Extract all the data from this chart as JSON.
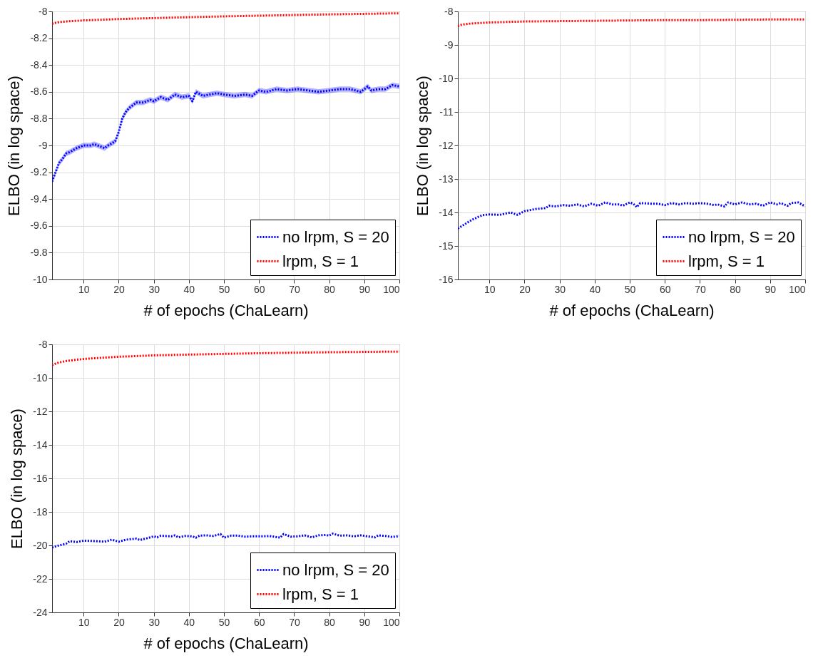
{
  "chart_data": [
    {
      "type": "line",
      "xlabel": "# of epochs (ChaLearn)",
      "ylabel": "ELBO (in log space)",
      "xlim": [
        1,
        100
      ],
      "xticks": [
        10,
        20,
        30,
        40,
        50,
        60,
        70,
        80,
        90,
        100
      ],
      "ylim": [
        -10,
        -8
      ],
      "yticks": [
        -10,
        -9.8,
        -9.6,
        -9.4,
        -9.2,
        -9,
        -8.8,
        -8.6,
        -8.4,
        -8.2,
        -8
      ],
      "grid": true,
      "legend": "bottom right",
      "line_style": "dotted",
      "series": [
        {
          "name": "no lrpm, S = 20",
          "color": "#0000ff",
          "x": [
            1,
            2,
            3,
            4,
            5,
            6,
            8,
            10,
            12,
            13,
            14,
            16,
            17,
            19,
            20,
            21,
            22,
            23,
            24,
            25,
            27,
            29,
            30,
            32,
            34,
            36,
            38,
            40,
            41,
            42,
            44,
            46,
            48,
            50,
            53,
            56,
            58,
            60,
            62,
            65,
            68,
            71,
            74,
            77,
            80,
            83,
            86,
            89,
            91,
            92,
            94,
            96,
            98,
            100
          ],
          "values": [
            -9.27,
            -9.2,
            -9.13,
            -9.1,
            -9.06,
            -9.05,
            -9.02,
            -9.0,
            -9.0,
            -8.99,
            -9.0,
            -9.02,
            -9.0,
            -8.97,
            -8.9,
            -8.8,
            -8.75,
            -8.72,
            -8.7,
            -8.68,
            -8.68,
            -8.66,
            -8.67,
            -8.64,
            -8.66,
            -8.62,
            -8.64,
            -8.63,
            -8.67,
            -8.6,
            -8.63,
            -8.62,
            -8.61,
            -8.62,
            -8.63,
            -8.62,
            -8.63,
            -8.59,
            -8.6,
            -8.58,
            -8.59,
            -8.58,
            -8.59,
            -8.6,
            -8.59,
            -8.58,
            -8.58,
            -8.6,
            -8.56,
            -8.59,
            -8.58,
            -8.58,
            -8.55,
            -8.56
          ],
          "lower": [
            -9.29,
            -9.22,
            -9.15,
            -9.12,
            -9.08,
            -9.07,
            -9.04,
            -9.02,
            -9.02,
            -9.01,
            -9.02,
            -9.04,
            -9.02,
            -8.99,
            -8.92,
            -8.82,
            -8.77,
            -8.74,
            -8.72,
            -8.7,
            -8.7,
            -8.68,
            -8.69,
            -8.66,
            -8.68,
            -8.64,
            -8.66,
            -8.65,
            -8.69,
            -8.62,
            -8.65,
            -8.64,
            -8.63,
            -8.64,
            -8.65,
            -8.64,
            -8.65,
            -8.61,
            -8.62,
            -8.6,
            -8.61,
            -8.6,
            -8.61,
            -8.62,
            -8.61,
            -8.6,
            -8.6,
            -8.62,
            -8.58,
            -8.61,
            -8.6,
            -8.6,
            -8.57,
            -8.58
          ],
          "upper": [
            -9.25,
            -9.18,
            -9.11,
            -9.08,
            -9.04,
            -9.03,
            -9.0,
            -8.98,
            -8.98,
            -8.97,
            -8.98,
            -9.0,
            -8.98,
            -8.95,
            -8.88,
            -8.78,
            -8.73,
            -8.7,
            -8.68,
            -8.66,
            -8.66,
            -8.64,
            -8.65,
            -8.62,
            -8.64,
            -8.6,
            -8.62,
            -8.61,
            -8.65,
            -8.58,
            -8.61,
            -8.6,
            -8.59,
            -8.6,
            -8.61,
            -8.6,
            -8.61,
            -8.57,
            -8.58,
            -8.56,
            -8.57,
            -8.56,
            -8.57,
            -8.58,
            -8.57,
            -8.56,
            -8.56,
            -8.58,
            -8.54,
            -8.57,
            -8.56,
            -8.56,
            -8.53,
            -8.54
          ]
        },
        {
          "name": "lrpm, S = 1",
          "color": "#ff0000",
          "x": [
            1,
            2,
            3,
            5,
            10,
            20,
            30,
            40,
            50,
            60,
            70,
            80,
            90,
            100
          ],
          "values": [
            -8.092,
            -8.085,
            -8.08,
            -8.075,
            -8.067,
            -8.057,
            -8.05,
            -8.043,
            -8.037,
            -8.032,
            -8.027,
            -8.022,
            -8.018,
            -8.014
          ]
        }
      ]
    },
    {
      "type": "line",
      "xlabel": "# of epochs (ChaLearn)",
      "ylabel": "ELBO (in log space)",
      "xlim": [
        1,
        100
      ],
      "xticks": [
        10,
        20,
        30,
        40,
        50,
        60,
        70,
        80,
        90,
        100
      ],
      "ylim": [
        -16,
        -8
      ],
      "yticks": [
        -16,
        -15,
        -14,
        -13,
        -12,
        -11,
        -10,
        -9,
        -8
      ],
      "grid": true,
      "legend": "bottom right",
      "line_style": "dotted",
      "series": [
        {
          "name": "no lrpm, S = 20",
          "color": "#0000ff",
          "x": [
            1,
            5,
            8,
            10,
            13,
            16,
            18,
            20,
            23,
            26,
            27,
            29,
            31,
            33,
            35,
            37,
            39,
            41,
            43,
            45,
            47,
            48,
            50,
            51,
            52,
            53,
            56,
            58,
            60,
            62,
            64,
            66,
            68,
            70,
            72,
            74,
            75,
            77,
            78,
            80,
            82,
            84,
            86,
            88,
            90,
            92,
            93,
            95,
            96,
            98,
            100
          ],
          "values": [
            -14.48,
            -14.22,
            -14.08,
            -14.06,
            -14.07,
            -14.0,
            -14.07,
            -13.96,
            -13.9,
            -13.87,
            -13.8,
            -13.82,
            -13.78,
            -13.8,
            -13.76,
            -13.82,
            -13.74,
            -13.8,
            -13.7,
            -13.76,
            -13.76,
            -13.8,
            -13.7,
            -13.74,
            -13.84,
            -13.72,
            -13.74,
            -13.74,
            -13.78,
            -13.72,
            -13.76,
            -13.72,
            -13.74,
            -13.72,
            -13.74,
            -13.78,
            -13.76,
            -13.82,
            -13.7,
            -13.76,
            -13.7,
            -13.76,
            -13.74,
            -13.8,
            -13.7,
            -13.76,
            -13.72,
            -13.8,
            -13.72,
            -13.7,
            -13.82
          ]
        },
        {
          "name": "lrpm, S = 1",
          "color": "#ff0000",
          "x": [
            1,
            2,
            3,
            5,
            10,
            20,
            30,
            40,
            50,
            60,
            70,
            80,
            90,
            100
          ],
          "values": [
            -8.44,
            -8.4,
            -8.38,
            -8.36,
            -8.33,
            -8.3,
            -8.29,
            -8.28,
            -8.27,
            -8.26,
            -8.26,
            -8.25,
            -8.24,
            -8.24
          ]
        }
      ]
    },
    {
      "type": "line",
      "xlabel": "# of epochs (ChaLearn)",
      "ylabel": "ELBO (in log space)",
      "xlim": [
        1,
        100
      ],
      "xticks": [
        10,
        20,
        30,
        40,
        50,
        60,
        70,
        80,
        90,
        100
      ],
      "ylim": [
        -24,
        -8
      ],
      "yticks": [
        -24,
        -22,
        -20,
        -18,
        -16,
        -14,
        -12,
        -10,
        -8
      ],
      "grid": true,
      "legend": "bottom right",
      "line_style": "dotted",
      "series": [
        {
          "name": "no lrpm, S = 20",
          "color": "#0000ff",
          "x": [
            1,
            3,
            5,
            6,
            8,
            10,
            13,
            16,
            18,
            20,
            22,
            25,
            26,
            28,
            30,
            31,
            32,
            35,
            36,
            37,
            39,
            41,
            42,
            43,
            45,
            47,
            49,
            50,
            52,
            54,
            56,
            58,
            61,
            63,
            66,
            67,
            69,
            71,
            73,
            75,
            77,
            79,
            80,
            81,
            83,
            85,
            87,
            89,
            91,
            93,
            94,
            96,
            98,
            100
          ],
          "values": [
            -20.13,
            -20.0,
            -19.9,
            -19.75,
            -19.8,
            -19.72,
            -19.74,
            -19.78,
            -19.66,
            -19.78,
            -19.66,
            -19.6,
            -19.68,
            -19.58,
            -19.46,
            -19.52,
            -19.42,
            -19.46,
            -19.4,
            -19.52,
            -19.44,
            -19.46,
            -19.54,
            -19.42,
            -19.4,
            -19.44,
            -19.32,
            -19.54,
            -19.42,
            -19.42,
            -19.48,
            -19.46,
            -19.46,
            -19.44,
            -19.54,
            -19.32,
            -19.48,
            -19.46,
            -19.4,
            -19.52,
            -19.4,
            -19.38,
            -19.42,
            -19.3,
            -19.42,
            -19.4,
            -19.46,
            -19.4,
            -19.46,
            -19.52,
            -19.4,
            -19.44,
            -19.5,
            -19.44
          ]
        },
        {
          "name": "lrpm, S = 1",
          "color": "#ff0000",
          "x": [
            1,
            2,
            3,
            5,
            10,
            20,
            30,
            40,
            50,
            60,
            70,
            80,
            90,
            100
          ],
          "values": [
            -9.25,
            -9.15,
            -9.08,
            -9.0,
            -8.87,
            -8.74,
            -8.66,
            -8.61,
            -8.57,
            -8.53,
            -8.5,
            -8.47,
            -8.45,
            -8.43
          ]
        }
      ]
    }
  ]
}
